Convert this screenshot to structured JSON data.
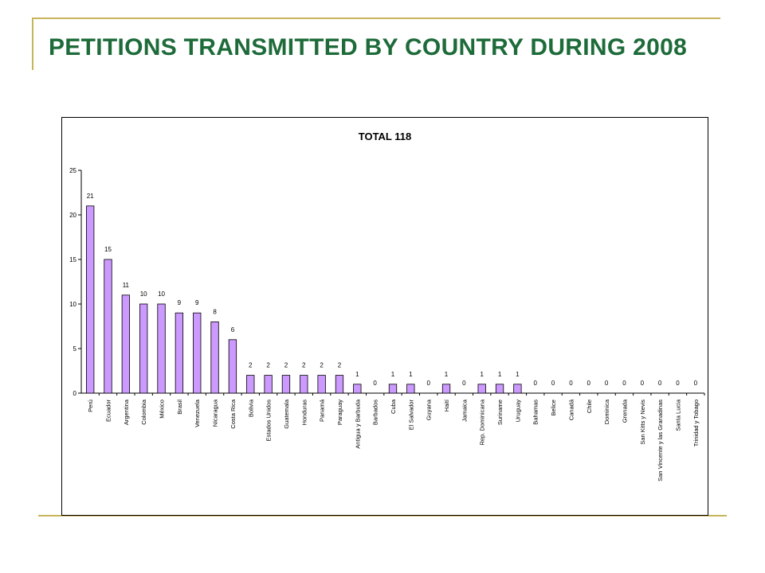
{
  "slide": {
    "title": "PETITIONS TRANSMITTED BY COUNTRY DURING 2008",
    "accent_color": "#c8b45a",
    "title_color": "#1e6b3a"
  },
  "chart_data": {
    "type": "bar",
    "title": "TOTAL 118",
    "xlabel": "",
    "ylabel": "",
    "ylim": [
      0,
      25
    ],
    "yticks": [
      0,
      5,
      10,
      15,
      20,
      25
    ],
    "grid": false,
    "legend": "none",
    "bar_color": "#cc99ff",
    "categories": [
      "Perú",
      "Ecuador",
      "Argentina",
      "Colombia",
      "México",
      "Brasil",
      "Venezuela",
      "Nicaragua",
      "Costa Rica",
      "Bolivia",
      "Estados Unidos",
      "Guatemala",
      "Honduras",
      "Panamá",
      "Paraguay",
      "Antigua y Barbuda",
      "Barbados",
      "Cuba",
      "El Salvador",
      "Guyana",
      "Haití",
      "Jamaica",
      "Rep. Dominicana",
      "Suriname",
      "Uruguay",
      "Bahamas",
      "Belice",
      "Canadá",
      "Chile",
      "Dominica",
      "Grenada",
      "San Kitts y Nevis",
      "San Vincente y las Granadinas",
      "Santa Lucia",
      "Trinidad y Tobago"
    ],
    "values": [
      21,
      15,
      11,
      10,
      10,
      9,
      9,
      8,
      6,
      2,
      2,
      2,
      2,
      2,
      2,
      1,
      0,
      1,
      1,
      0,
      1,
      0,
      1,
      1,
      1,
      0,
      0,
      0,
      0,
      0,
      0,
      0,
      0,
      0,
      0
    ]
  }
}
